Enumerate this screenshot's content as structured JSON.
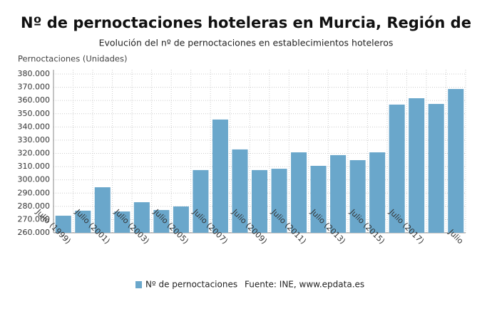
{
  "chart_data": {
    "type": "bar",
    "title": "Nº de pernoctaciones hoteleras en Murcia, Región de",
    "subtitle": "Evolución del nº de pernoctaciones en establecimientos hoteleros",
    "y_label": "Pernoctaciones (Unidades)",
    "source": "Fuente: INE, www.epdata.es",
    "categories": [
      "Julio (1999)",
      null,
      "Julio (2001)",
      null,
      "Julio (2003)",
      null,
      "Julio (2005)",
      null,
      "Julio (2007)",
      null,
      "Julio (2009)",
      null,
      "Julio (2011)",
      null,
      "Julio (2013)",
      null,
      "Julio (2015)",
      null,
      "Julio (2017)",
      null,
      "Julio"
    ],
    "series": [
      {
        "name": "Nº de pernoctaciones",
        "color": "#6aa7cb",
        "values": [
          272900,
          276700,
          294400,
          276100,
          283100,
          277200,
          279900,
          307400,
          345600,
          323000,
          307400,
          308400,
          320800,
          310600,
          318700,
          314900,
          320800,
          356900,
          361700,
          357400,
          368700
        ]
      }
    ],
    "ylim": [
      260000,
      380000
    ],
    "yticks": [
      {
        "value": 260000,
        "label": "260.000"
      },
      {
        "value": 270000,
        "label": "270.000"
      },
      {
        "value": 280000,
        "label": "280.000"
      },
      {
        "value": 290000,
        "label": "290.000"
      },
      {
        "value": 300000,
        "label": "300.000"
      },
      {
        "value": 310000,
        "label": "310.000"
      },
      {
        "value": 320000,
        "label": "320.000"
      },
      {
        "value": 330000,
        "label": "330.000"
      },
      {
        "value": 340000,
        "label": "340.000"
      },
      {
        "value": 350000,
        "label": "350.000"
      },
      {
        "value": 360000,
        "label": "360.000"
      },
      {
        "value": 370000,
        "label": "370.000"
      },
      {
        "value": 380000,
        "label": "380.000"
      }
    ],
    "grid": true
  }
}
